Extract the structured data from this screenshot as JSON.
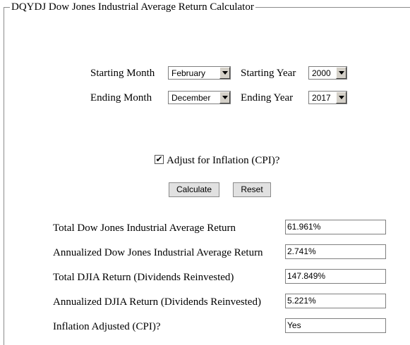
{
  "calculator": {
    "title": "DQYDJ Dow Jones Industrial Average Return Calculator",
    "starting_month_label": "Starting Month",
    "starting_month_value": "February",
    "starting_year_label": "Starting Year",
    "starting_year_value": "2000",
    "ending_month_label": "Ending Month",
    "ending_month_value": "December",
    "ending_year_label": "Ending Year",
    "ending_year_value": "2017",
    "inflation_checkbox_label": "Adjust for Inflation (CPI)?",
    "inflation_checked": true,
    "checkmark": "✔",
    "calculate_label": "Calculate",
    "reset_label": "Reset"
  },
  "results": [
    {
      "label": "Total Dow Jones Industrial Average Return",
      "value": "61.961%"
    },
    {
      "label": "Annualized Dow Jones Industrial Average Return",
      "value": "2.741%"
    },
    {
      "label": "Total DJIA Return (Dividends Reinvested)",
      "value": "147.849%"
    },
    {
      "label": "Annualized DJIA Return (Dividends Reinvested)",
      "value": "5.221%"
    },
    {
      "label": "Inflation Adjusted (CPI)?",
      "value": "Yes"
    }
  ],
  "colors": {
    "border": "#8c8c8c",
    "button_bg": "#e1e1e1",
    "dropdown_button": "#d4d0c8"
  }
}
